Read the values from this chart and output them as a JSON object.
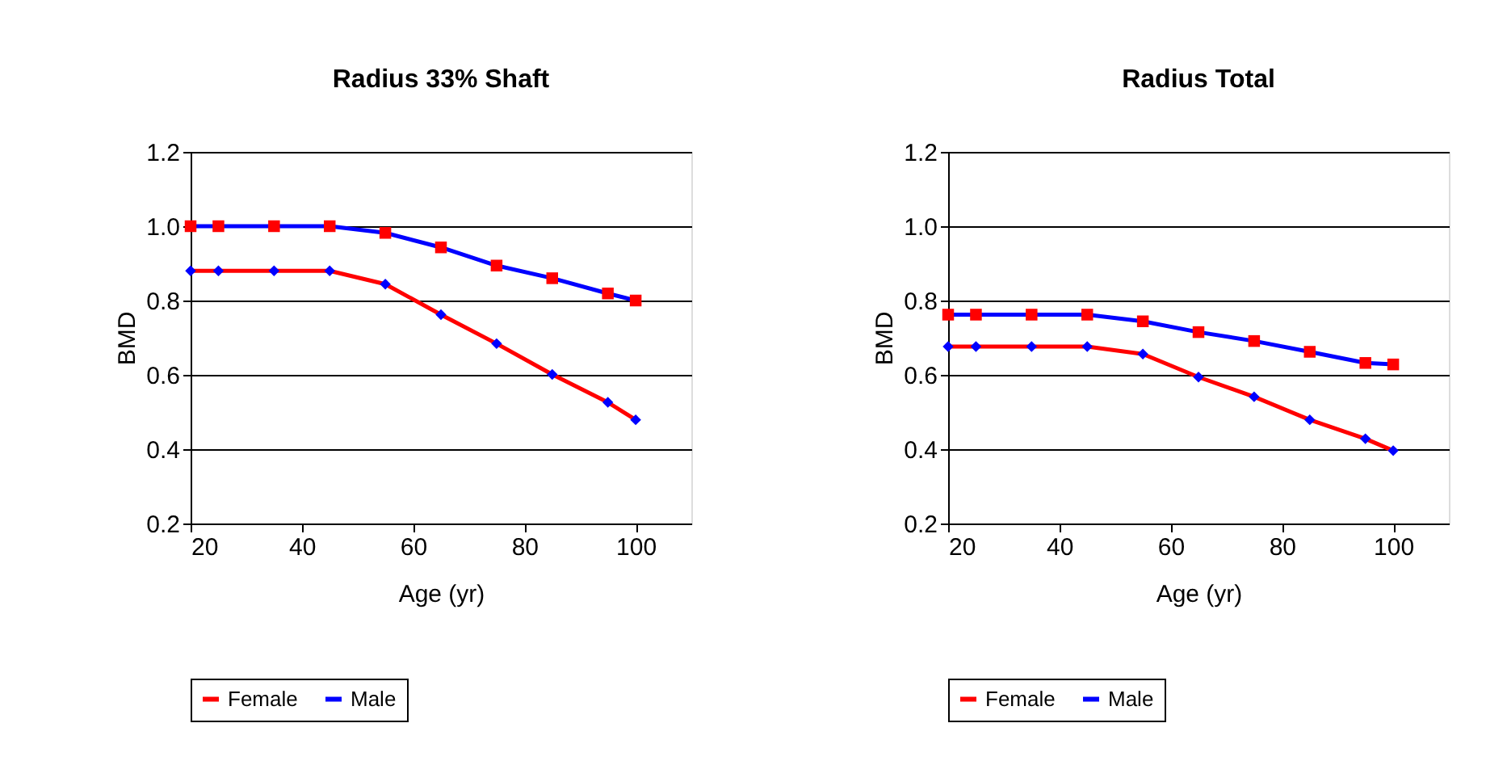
{
  "chart_data": [
    {
      "type": "line",
      "title": "Radius 33% Shaft",
      "xlabel": "Age (yr)",
      "ylabel": "BMD",
      "x": [
        20,
        25,
        35,
        45,
        55,
        65,
        75,
        85,
        95,
        100
      ],
      "xlim": [
        20,
        110
      ],
      "xticks": [
        20,
        40,
        60,
        80,
        100
      ],
      "ylim": [
        0.2,
        1.2
      ],
      "yticks": [
        0.2,
        0.4,
        0.6,
        0.8,
        {
          "value": 1.0,
          "label": "1.0"
        },
        1.2
      ],
      "grid": "y",
      "legend": "bottom",
      "series": [
        {
          "name": "Female",
          "color": "#ff0000",
          "marker": "diamond",
          "colors": [
            "#0000ff",
            "#0000ff",
            "#0000ff",
            "#0000ff",
            "#0000ff",
            "#0000ff",
            "#0000ff",
            "#0000ff",
            "#0000ff",
            "#0000ff"
          ],
          "values": [
            0.88,
            0.88,
            0.88,
            0.88,
            0.844,
            0.762,
            0.684,
            0.601,
            0.526,
            0.479
          ]
        },
        {
          "name": "Male",
          "color": "#0000ff",
          "marker": "square",
          "colors": [
            "#ff0000",
            "#ff0000",
            "#ff0000",
            "#ff0000",
            "#ff0000",
            "#ff0000",
            "#ff0000",
            "#ff0000",
            "#ff0000",
            "#ff0000"
          ],
          "values": [
            1.0,
            1.0,
            1.0,
            1.0,
            0.982,
            0.943,
            0.894,
            0.86,
            0.819,
            0.8
          ]
        }
      ]
    },
    {
      "type": "line",
      "title": "Radius Total",
      "xlabel": "Age (yr)",
      "ylabel": "BMD",
      "x": [
        20,
        25,
        35,
        45,
        55,
        65,
        75,
        85,
        95,
        100
      ],
      "xlim": [
        20,
        110
      ],
      "xticks": [
        20,
        40,
        60,
        80,
        100
      ],
      "ylim": [
        0.2,
        1.2
      ],
      "yticks": [
        0.2,
        0.4,
        0.6,
        0.8,
        {
          "value": 1.0,
          "label": "1.0"
        },
        1.2
      ],
      "grid": "y",
      "legend": "bottom",
      "series": [
        {
          "name": "Female",
          "color": "#ff0000",
          "marker": "diamond",
          "colors": [
            "#0000ff",
            "#0000ff",
            "#0000ff",
            "#0000ff",
            "#0000ff",
            "#0000ff",
            "#0000ff",
            "#0000ff",
            "#0000ff",
            "#0000ff"
          ],
          "values": [
            0.676,
            0.676,
            0.676,
            0.676,
            0.656,
            0.594,
            0.541,
            0.479,
            0.428,
            0.396
          ]
        },
        {
          "name": "Male",
          "color": "#0000ff",
          "marker": "square",
          "colors": [
            "#ff0000",
            "#ff0000",
            "#ff0000",
            "#ff0000",
            "#ff0000",
            "#ff0000",
            "#ff0000",
            "#ff0000",
            "#ff0000",
            "#ff0000"
          ],
          "values": [
            0.762,
            0.762,
            0.762,
            0.762,
            0.744,
            0.715,
            0.691,
            0.662,
            0.632,
            0.628
          ]
        }
      ]
    }
  ]
}
